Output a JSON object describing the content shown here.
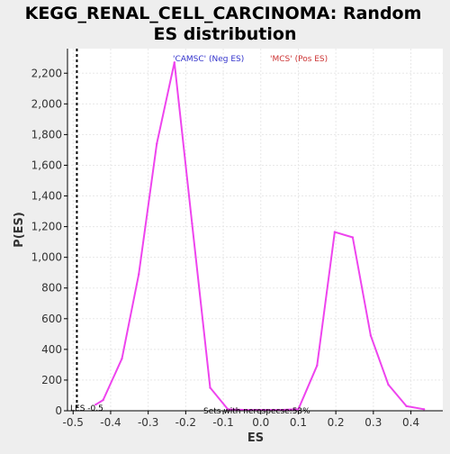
{
  "chart_data": {
    "type": "line",
    "title_lines": [
      "KEGG_RENAL_CELL_CARCINOMA: Random",
      "ES distribution"
    ],
    "xlabel": "ES",
    "ylabel": "P(ES)",
    "xlim": [
      -0.515,
      0.485
    ],
    "ylim": [
      0,
      2360
    ],
    "xticks": [
      {
        "value": -0.5,
        "label": "-0.5"
      },
      {
        "value": -0.4,
        "label": "-0.4"
      },
      {
        "value": -0.3,
        "label": "-0.3"
      },
      {
        "value": -0.2,
        "label": "-0.2"
      },
      {
        "value": -0.1,
        "label": "-0.1"
      },
      {
        "value": 0.0,
        "label": "0.0"
      },
      {
        "value": 0.1,
        "label": "0.1"
      },
      {
        "value": 0.2,
        "label": "0.2"
      },
      {
        "value": 0.3,
        "label": "0.3"
      },
      {
        "value": 0.4,
        "label": "0.4"
      }
    ],
    "yticks": [
      {
        "value": 0,
        "label": "0"
      },
      {
        "value": 200,
        "label": "200"
      },
      {
        "value": 400,
        "label": "400"
      },
      {
        "value": 600,
        "label": "600"
      },
      {
        "value": 800,
        "label": "800"
      },
      {
        "value": 1000,
        "label": "1,000"
      },
      {
        "value": 1200,
        "label": "1,200"
      },
      {
        "value": 1400,
        "label": "1,400"
      },
      {
        "value": 1600,
        "label": "1,600"
      },
      {
        "value": 1800,
        "label": "1,800"
      },
      {
        "value": 2000,
        "label": "2,000"
      },
      {
        "value": 2200,
        "label": "2,200"
      }
    ],
    "grid": true,
    "legend": [
      {
        "label": "'CAMSC' (Neg ES)",
        "color": "#3333cc"
      },
      {
        "label": "'MCS' (Pos ES)",
        "color": "#cc3333"
      }
    ],
    "series": [
      {
        "color": "#ee44ee",
        "points": [
          [
            -0.44,
            40
          ],
          [
            -0.42,
            70
          ],
          [
            -0.37,
            340
          ],
          [
            -0.325,
            890
          ],
          [
            -0.277,
            1740
          ],
          [
            -0.23,
            2270
          ],
          [
            -0.183,
            1220
          ],
          [
            -0.135,
            150
          ],
          [
            -0.088,
            10
          ],
          [
            -0.04,
            5
          ],
          [
            0.005,
            5
          ],
          [
            0.052,
            5
          ],
          [
            0.1,
            10
          ],
          [
            0.15,
            295
          ],
          [
            0.197,
            1165
          ],
          [
            0.245,
            1130
          ],
          [
            0.293,
            490
          ],
          [
            0.34,
            170
          ],
          [
            0.388,
            30
          ],
          [
            0.435,
            10
          ]
        ]
      }
    ],
    "marker_line": {
      "x": -0.49,
      "color": "#000000",
      "style": "dashed"
    },
    "annotations": [
      {
        "text": "LES -0.5",
        "x": -0.515
      },
      {
        "text": "Sets with nerespecse:53%",
        "x": -0.14
      }
    ]
  },
  "colors": {
    "background": "#eeeeee",
    "plot_background": "#ffffff",
    "grid": "#e8e8e8",
    "axis": "#000000",
    "title": "#000000"
  }
}
